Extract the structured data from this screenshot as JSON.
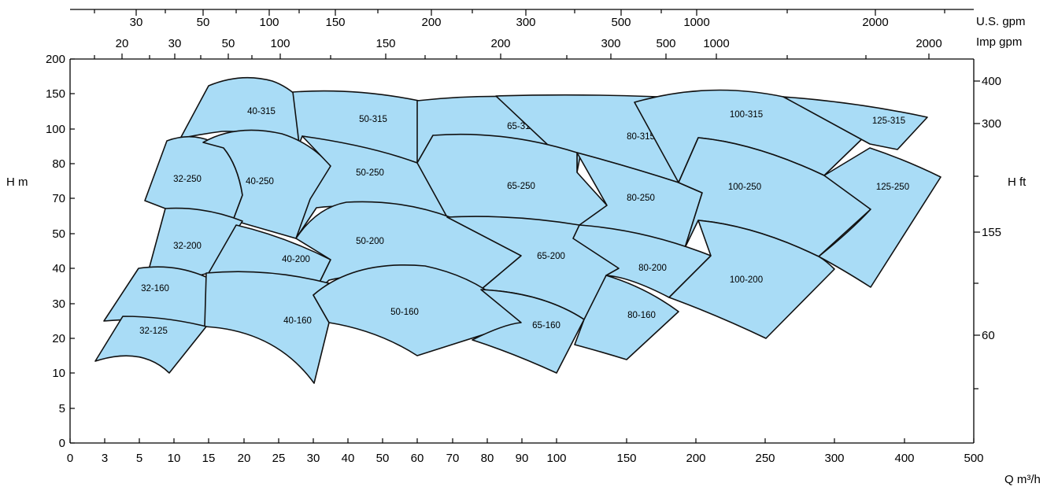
{
  "chart_data": {
    "type": "area",
    "title": "",
    "xlabel": "Q m³/h",
    "ylabel": "H  m",
    "y2label": "H  ft",
    "top_axis_units": [
      "U.S.  gpm",
      "Imp  gpm"
    ],
    "x_ticks": [
      "0",
      "3",
      "5",
      "10",
      "15",
      "20",
      "25",
      "30",
      "40",
      "50",
      "60",
      "70",
      "80",
      "90",
      "100",
      "150",
      "200",
      "250",
      "300",
      "400",
      "500"
    ],
    "y_ticks": [
      "0",
      "5",
      "10",
      "20",
      "30",
      "40",
      "50",
      "70",
      "80",
      "100",
      "150",
      "200"
    ],
    "y_right_ticks": [
      "400",
      "300",
      "155",
      "60"
    ],
    "us_gpm_ticks": [
      "30",
      "50",
      "100",
      "150",
      "200",
      "300",
      "500",
      "1000",
      "2000"
    ],
    "imp_gpm_ticks": [
      "20",
      "30",
      "50",
      "100",
      "150",
      "200",
      "300",
      "500",
      "1000",
      "2000"
    ],
    "regions": [
      {
        "label": "40-315",
        "outline": [
          [
            "10",
            "100"
          ],
          [
            "15",
            "150"
          ],
          [
            "20",
            "150"
          ],
          [
            "30",
            "150"
          ],
          [
            "28",
            "100"
          ],
          [
            "20",
            "100"
          ],
          [
            "15",
            "95"
          ]
        ]
      },
      {
        "label": "50-315",
        "outline": [
          [
            "30",
            "150"
          ],
          [
            "50",
            "150"
          ],
          [
            "70",
            "120"
          ],
          [
            "60",
            "90"
          ],
          [
            "40",
            "95"
          ],
          [
            "30",
            "100"
          ]
        ]
      },
      {
        "label": "65-315",
        "outline": [
          [
            "70",
            "120"
          ],
          [
            "100",
            "150"
          ],
          [
            "100",
            "120"
          ],
          [
            "100",
            "90"
          ],
          [
            "80",
            "80"
          ],
          [
            "60",
            "90"
          ]
        ]
      },
      {
        "label": "80-315",
        "outline": [
          [
            "100",
            "150"
          ],
          [
            "150",
            "150"
          ],
          [
            "250",
            "150"
          ],
          [
            "200",
            "100"
          ],
          [
            "150",
            "80"
          ],
          [
            "100",
            "90"
          ]
        ]
      },
      {
        "label": "100-315",
        "outline": [
          [
            "250",
            "150"
          ],
          [
            "300",
            "150"
          ],
          [
            "300",
            "100"
          ],
          [
            "200",
            "90"
          ],
          [
            "200",
            "100"
          ]
        ]
      },
      {
        "label": "125-315",
        "outline": [
          [
            "300",
            "150"
          ],
          [
            "400",
            "150"
          ],
          [
            "500",
            "100"
          ],
          [
            "300",
            "80"
          ]
        ]
      },
      {
        "label": "32-250",
        "outline": [
          [
            "5",
            "70"
          ],
          [
            "10",
            "90"
          ],
          [
            "12",
            "90"
          ],
          [
            "15",
            "70"
          ],
          [
            "12",
            "60"
          ],
          [
            "5",
            "60"
          ]
        ]
      },
      {
        "label": "40-250",
        "outline": [
          [
            "15",
            "90"
          ],
          [
            "20",
            "100"
          ],
          [
            "25",
            "100"
          ],
          [
            "30",
            "80"
          ],
          [
            "25",
            "60"
          ],
          [
            "15",
            "60"
          ]
        ]
      },
      {
        "label": "50-250",
        "outline": [
          [
            "30",
            "100"
          ],
          [
            "40",
            "95"
          ],
          [
            "60",
            "80"
          ],
          [
            "70",
            "60"
          ],
          [
            "50",
            "60"
          ],
          [
            "30",
            "70"
          ]
        ]
      },
      {
        "label": "65-250",
        "outline": [
          [
            "60",
            "90"
          ],
          [
            "70",
            "90"
          ],
          [
            "90",
            "80"
          ],
          [
            "100",
            "60"
          ],
          [
            "80",
            "50"
          ],
          [
            "60",
            "60"
          ]
        ]
      },
      {
        "label": "80-250",
        "outline": [
          [
            "100",
            "80"
          ],
          [
            "150",
            "80"
          ],
          [
            "150",
            "60"
          ],
          [
            "150",
            "50"
          ],
          [
            "100",
            "50"
          ]
        ]
      },
      {
        "label": "100-250",
        "outline": [
          [
            "200",
            "90"
          ],
          [
            "250",
            "90"
          ],
          [
            "250",
            "70"
          ],
          [
            "300",
            "50"
          ],
          [
            "250",
            "50"
          ],
          [
            "200",
            "60"
          ]
        ]
      },
      {
        "label": "125-250",
        "outline": [
          [
            "300",
            "80"
          ],
          [
            "400",
            "80"
          ],
          [
            "500",
            "80"
          ],
          [
            "400",
            "40"
          ],
          [
            "300",
            "50"
          ]
        ]
      },
      {
        "label": "32-200",
        "outline": [
          [
            "5",
            "60"
          ],
          [
            "10",
            "70"
          ],
          [
            "15",
            "60"
          ],
          [
            "10",
            "40"
          ],
          [
            "5",
            "40"
          ]
        ]
      },
      {
        "label": "40-200",
        "outline": [
          [
            "15",
            "50"
          ],
          [
            "20",
            "50"
          ],
          [
            "30",
            "40"
          ],
          [
            "25",
            "30"
          ],
          [
            "15",
            "40"
          ]
        ]
      },
      {
        "label": "50-200",
        "outline": [
          [
            "30",
            "60"
          ],
          [
            "50",
            "70"
          ],
          [
            "70",
            "60"
          ],
          [
            "90",
            "40"
          ],
          [
            "60",
            "40"
          ],
          [
            "30",
            "40"
          ]
        ]
      },
      {
        "label": "65-200",
        "outline": [
          [
            "70",
            "60"
          ],
          [
            "90",
            "50"
          ],
          [
            "100",
            "40"
          ],
          [
            "100",
            "30"
          ],
          [
            "80",
            "30"
          ],
          [
            "70",
            "40"
          ]
        ]
      },
      {
        "label": "80-200",
        "outline": [
          [
            "100",
            "50"
          ],
          [
            "150",
            "50"
          ],
          [
            "150",
            "40"
          ],
          [
            "150",
            "30"
          ],
          [
            "100",
            "30"
          ]
        ]
      },
      {
        "label": "100-200",
        "outline": [
          [
            "150",
            "50"
          ],
          [
            "200",
            "50"
          ],
          [
            "300",
            "40"
          ],
          [
            "250",
            "20"
          ],
          [
            "150",
            "30"
          ]
        ]
      },
      {
        "label": "32-160",
        "outline": [
          [
            "3",
            "25"
          ],
          [
            "5",
            "40"
          ],
          [
            "10",
            "40"
          ],
          [
            "15",
            "30"
          ],
          [
            "10",
            "25"
          ]
        ]
      },
      {
        "label": "40-160",
        "outline": [
          [
            "15",
            "40"
          ],
          [
            "20",
            "40"
          ],
          [
            "25",
            "30"
          ],
          [
            "30",
            "10"
          ],
          [
            "25",
            "20"
          ],
          [
            "15",
            "20"
          ]
        ]
      },
      {
        "label": "50-160",
        "outline": [
          [
            "30",
            "40"
          ],
          [
            "50",
            "40"
          ],
          [
            "80",
            "30"
          ],
          [
            "60",
            "20"
          ],
          [
            "40",
            "20"
          ],
          [
            "30",
            "30"
          ]
        ]
      },
      {
        "label": "65-160",
        "outline": [
          [
            "70",
            "40"
          ],
          [
            "90",
            "40"
          ],
          [
            "100",
            "30"
          ],
          [
            "90",
            "10"
          ],
          [
            "80",
            "20"
          ],
          [
            "70",
            "20"
          ]
        ]
      },
      {
        "label": "80-160",
        "outline": [
          [
            "100",
            "40"
          ],
          [
            "150",
            "40"
          ],
          [
            "150",
            "20"
          ],
          [
            "100",
            "20"
          ]
        ]
      },
      {
        "label": "32-125",
        "outline": [
          [
            "3",
            "15"
          ],
          [
            "5",
            "20"
          ],
          [
            "10",
            "25"
          ],
          [
            "15",
            "20"
          ],
          [
            "10",
            "10"
          ],
          [
            "5",
            "15"
          ]
        ]
      }
    ]
  }
}
